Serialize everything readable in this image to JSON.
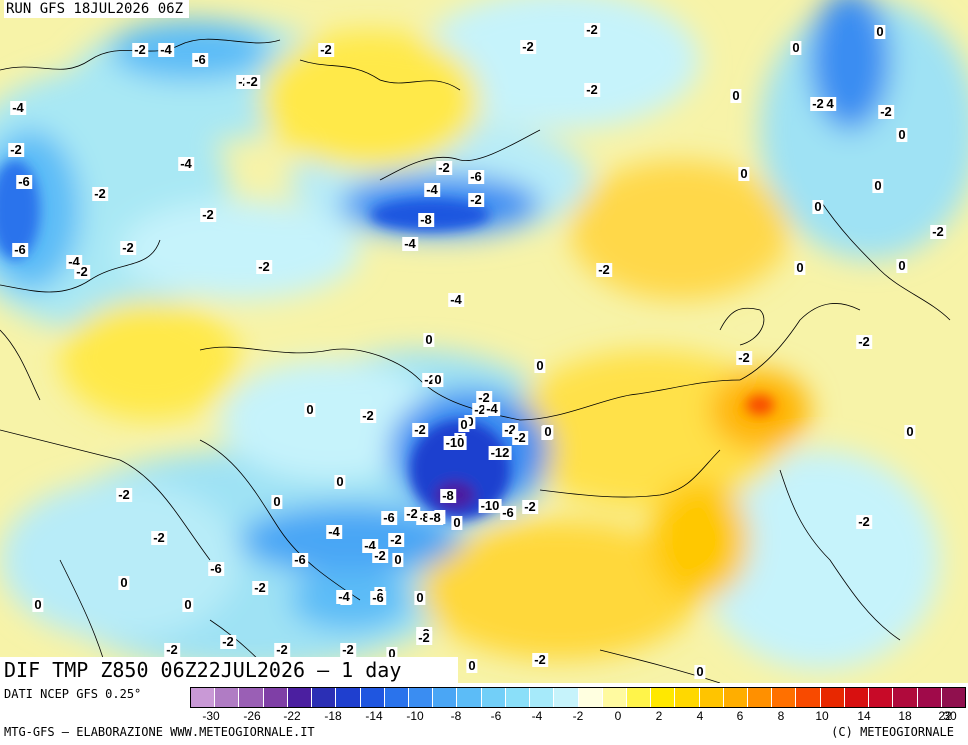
{
  "header": {
    "run": "RUN GFS 18JUL2026 06Z"
  },
  "map": {
    "title": "DIF TMP Z850 06Z22JUL2026 – 1 day",
    "contour_labels": [
      "-2",
      "-4",
      "-6",
      "-2",
      "-2",
      "-4",
      "-2",
      "-4",
      "-6",
      "-2",
      "-2",
      "-2",
      "-2",
      "-6",
      "-4",
      "-2",
      "-2",
      "-2",
      "-2",
      "-2",
      "-4",
      "-6",
      "-2",
      "-2",
      "-8",
      "-4",
      "-2",
      "-4",
      "0",
      "-2",
      "0",
      "0",
      "-2",
      "0",
      "-2",
      "-2",
      "0",
      "0",
      "0",
      "-2",
      "0",
      "0",
      "0",
      "-2",
      "-2",
      "-10",
      "-4",
      "-2",
      "-8",
      "-12",
      "0",
      "-2",
      "0",
      "-4",
      "-6",
      "-8",
      "-8",
      "-10",
      "-6",
      "-2",
      "0",
      "0",
      "-4",
      "-6",
      "-2",
      "-6",
      "-2",
      "0",
      "-2",
      "-2",
      "0",
      "-2",
      "-2",
      "0",
      "0",
      "-2",
      "0",
      "-2",
      "0",
      "-4",
      "-6",
      "-2",
      "-2",
      "-2",
      "0",
      "0",
      "0",
      "0",
      "0",
      "0",
      "0",
      "0",
      "0",
      "-2",
      "-2",
      "0",
      "-2",
      "-4",
      "-2",
      "0",
      "-2",
      "0",
      "0",
      "-2"
    ]
  },
  "legend": {
    "source": "DATI NCEP GFS 0.25°",
    "colors": [
      "#c999d6",
      "#b07cc4",
      "#9a5fb5",
      "#7f3fa6",
      "#4b1fa0",
      "#2b2fb5",
      "#1f3fcf",
      "#1f56e0",
      "#2a73ec",
      "#3a8df2",
      "#4aa6f5",
      "#5cbcf7",
      "#72cff8",
      "#8adff9",
      "#a6eafa",
      "#c6f3fb",
      "#ffffe0",
      "#fffaa0",
      "#fff44a",
      "#ffe800",
      "#ffd800",
      "#ffc400",
      "#ffae00",
      "#ff9000",
      "#ff7000",
      "#f84a00",
      "#e82800",
      "#d81010",
      "#c80a28",
      "#b00a3c",
      "#a00a4a",
      "#90104e"
    ],
    "ticks": [
      "-30",
      "-26",
      "-22",
      "-18",
      "-14",
      "-10",
      "-8",
      "-6",
      "-4",
      "-2",
      "0",
      "2",
      "4",
      "6",
      "8",
      "10",
      "14",
      "18",
      "22",
      "30"
    ],
    "credit": "MTG-GFS – ELABORAZIONE WWW.METEOGIORNALE.IT",
    "copyright": "(C) METEOGIORNALE"
  }
}
